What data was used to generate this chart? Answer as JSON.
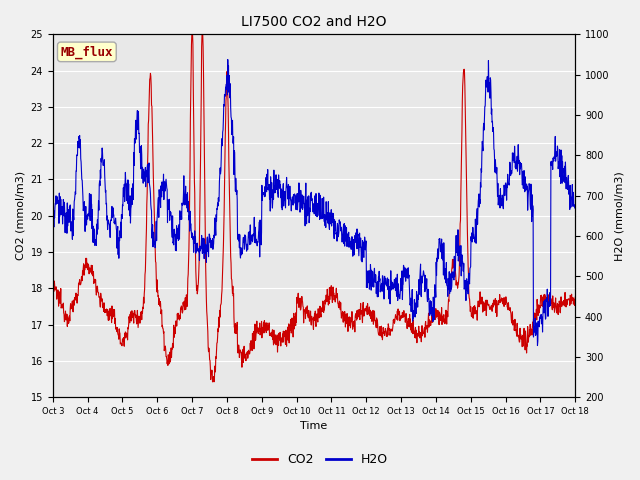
{
  "title": "LI7500 CO2 and H2O",
  "xlabel": "Time",
  "ylabel_left": "CO2 (mmol/m3)",
  "ylabel_right": "H2O (mmol/m3)",
  "annotation_text": "MB_flux",
  "annotation_color": "#990000",
  "annotation_bg": "#ffffcc",
  "annotation_border": "#aaaaaa",
  "xlim": [
    0,
    15
  ],
  "ylim_left": [
    15.0,
    25.0
  ],
  "ylim_right": [
    200,
    1100
  ],
  "yticks_left": [
    15.0,
    16.0,
    17.0,
    18.0,
    19.0,
    20.0,
    21.0,
    22.0,
    23.0,
    24.0,
    25.0
  ],
  "yticks_right": [
    200,
    300,
    400,
    500,
    600,
    700,
    800,
    900,
    1000,
    1100
  ],
  "xtick_labels": [
    "Oct 3",
    "Oct 4",
    "Oct 5",
    "Oct 6",
    "Oct 7",
    "Oct 8",
    "Oct 9",
    "Oct 10",
    "Oct 11",
    "Oct 12",
    "Oct 13",
    "Oct 14",
    "Oct 15",
    "Oct 16",
    "Oct 17",
    "Oct 18"
  ],
  "co2_color": "#cc0000",
  "h2o_color": "#0000cc",
  "line_width": 0.8,
  "bg_color": "#e8e8e8",
  "legend_co2": "CO2",
  "legend_h2o": "H2O",
  "grid_color": "#ffffff",
  "title_fontsize": 10,
  "tick_fontsize": 7,
  "label_fontsize": 8,
  "fig_bg": "#f0f0f0"
}
